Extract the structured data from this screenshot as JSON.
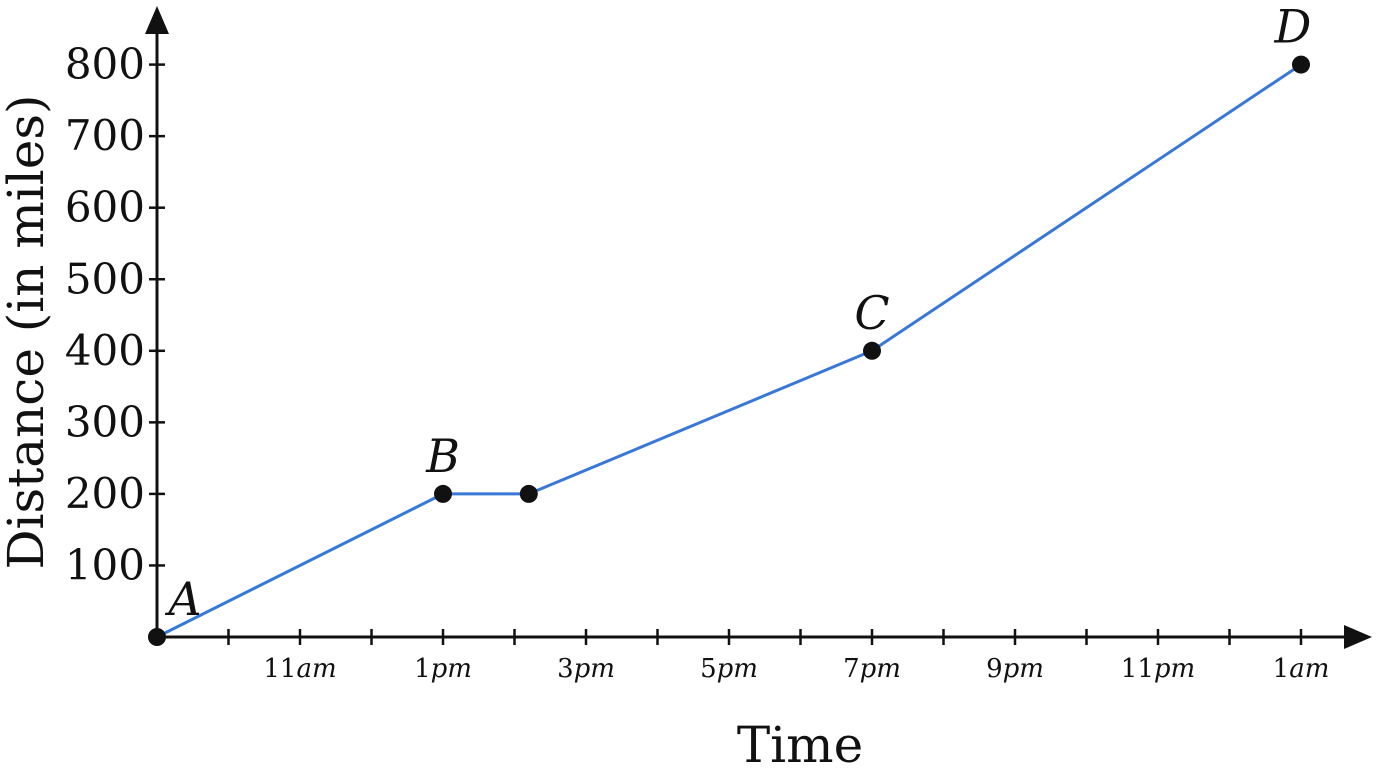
{
  "chart_data": {
    "type": "line",
    "xlabel": "Time",
    "ylabel": "Distance (in miles)",
    "x_ticks": [
      {
        "value": 11,
        "num": "11",
        "suffix": "am"
      },
      {
        "value": 13,
        "num": "1",
        "suffix": "pm"
      },
      {
        "value": 15,
        "num": "3",
        "suffix": "pm"
      },
      {
        "value": 17,
        "num": "5",
        "suffix": "pm"
      },
      {
        "value": 19,
        "num": "7",
        "suffix": "pm"
      },
      {
        "value": 21,
        "num": "9",
        "suffix": "pm"
      },
      {
        "value": 23,
        "num": "11",
        "suffix": "pm"
      },
      {
        "value": 25,
        "num": "1",
        "suffix": "am"
      }
    ],
    "x_minor_ticks": [
      10,
      12,
      14,
      16,
      18,
      20,
      22,
      24
    ],
    "y_ticks": [
      100,
      200,
      300,
      400,
      500,
      600,
      700,
      800
    ],
    "xlim": [
      9,
      25
    ],
    "ylim": [
      0,
      800
    ],
    "series": [
      {
        "color": "#3a78d8",
        "points": [
          {
            "x": 9,
            "y": 0,
            "label": "A"
          },
          {
            "x": 13,
            "y": 200,
            "label": "B"
          },
          {
            "x": 14.2,
            "y": 200,
            "label": ""
          },
          {
            "x": 19,
            "y": 400,
            "label": "C"
          },
          {
            "x": 25,
            "y": 800,
            "label": "D"
          }
        ]
      }
    ],
    "grid": false
  }
}
